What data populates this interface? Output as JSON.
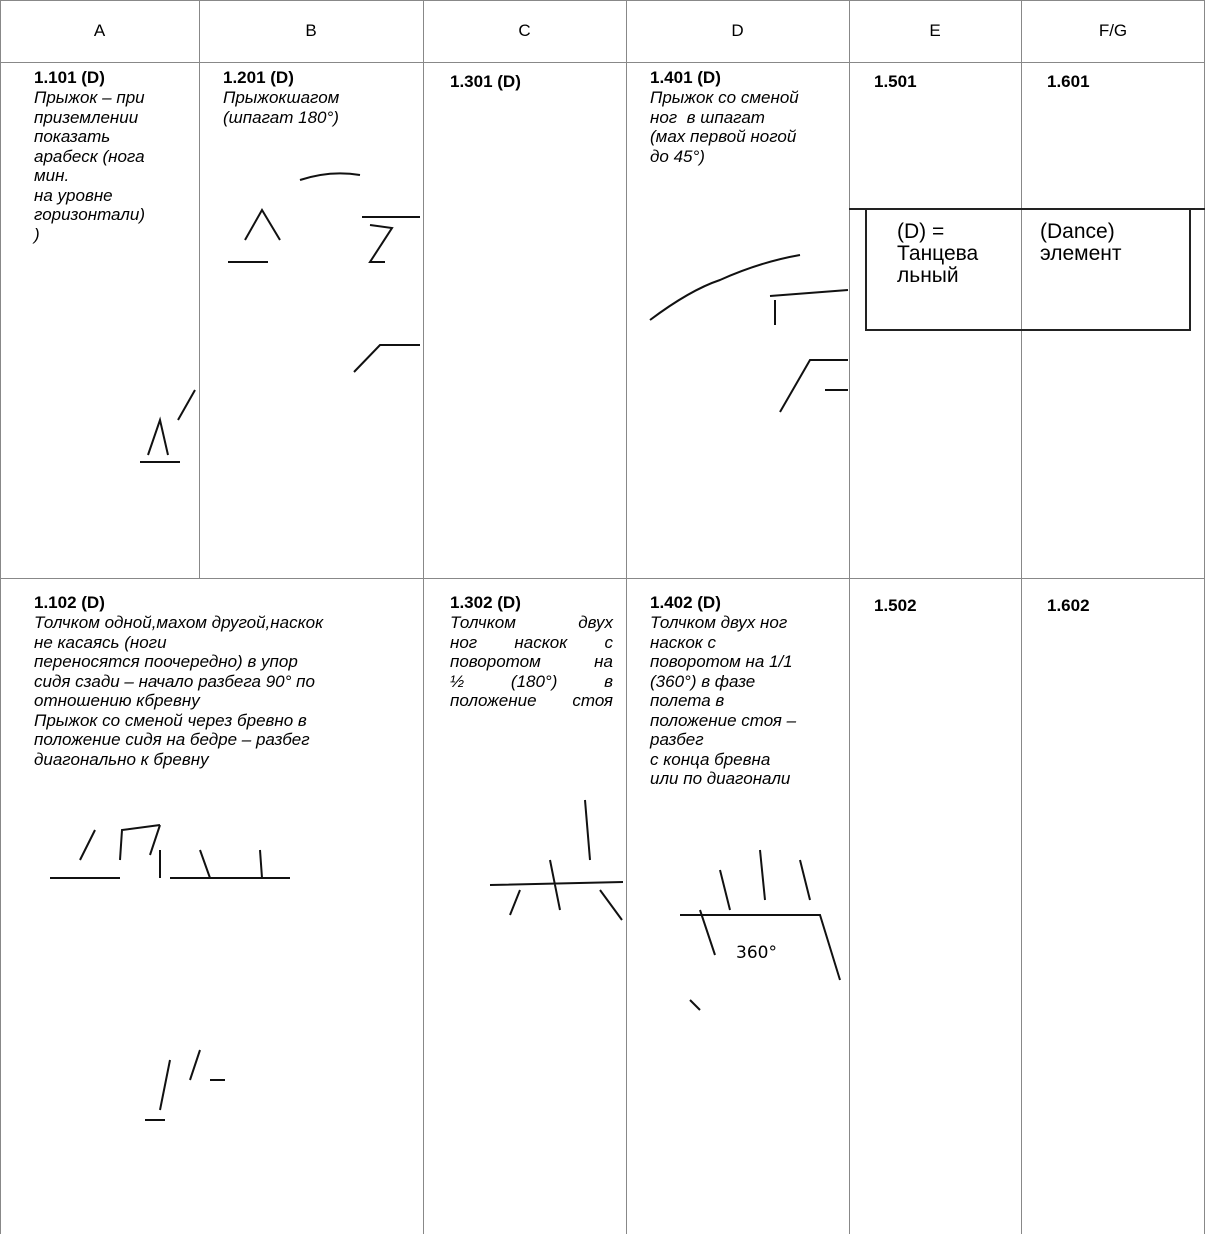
{
  "header": [
    "A",
    "B",
    "C",
    "D",
    "E",
    "F/G"
  ],
  "rows": [
    [
      {
        "code": "1.101 (D)",
        "lines": [
          "Прыжок – при",
          "приземлении",
          "показать",
          "арабеск (нога",
          "мин.",
          "на уровне",
          "горизонтали)",
          ")"
        ]
      },
      {
        "code": "1.201 (D)",
        "lines": [
          "Прыжокшагом",
          "(шпагат 180°)"
        ]
      },
      {
        "code": "1.301 (D)",
        "lines": []
      },
      {
        "code": "1.401 (D)",
        "lines": [
          "Прыжок со сменой",
          "ног  в шпагат",
          "(мах первой ногой",
          "до 45°)"
        ]
      },
      {
        "code": "1.501",
        "lines": []
      },
      {
        "code": "1.601",
        "lines": []
      }
    ],
    [
      {
        "code": "1.102 (D)",
        "lines": [
          "Толчком одной,махом другой,наскок",
          "не касаясь (ноги",
          "переносятся поочередно) в упор",
          "сидя сзади – начало разбега 90° по",
          "отношению кбревну",
          "Прыжок со сменой через бревно в",
          "положение сидя на бедре – разбег",
          "диагонально к бревну"
        ]
      },
      {
        "code": "1.302 (D)",
        "lines": [
          "Толчком двух",
          "ног наскок с",
          "поворотом на",
          "½ (180°) в",
          "положение стоя"
        ]
      },
      {
        "code": "1.402 (D)",
        "lines": [
          "Толчком двух ног",
          "наскок с",
          "поворотом на 1/1",
          "(360°) в фазе",
          "полета в",
          "положение стоя –",
          "разбег",
          "с конца бревна",
          "или по диагонали"
        ]
      },
      {
        "code": "1.502",
        "lines": []
      },
      {
        "code": "1.602",
        "lines": []
      }
    ]
  ],
  "legend": {
    "left": [
      "(D) =",
      "Танцева",
      "льный"
    ],
    "right": [
      "(Dance)",
      "элемент"
    ]
  },
  "sketch_label": "360°"
}
